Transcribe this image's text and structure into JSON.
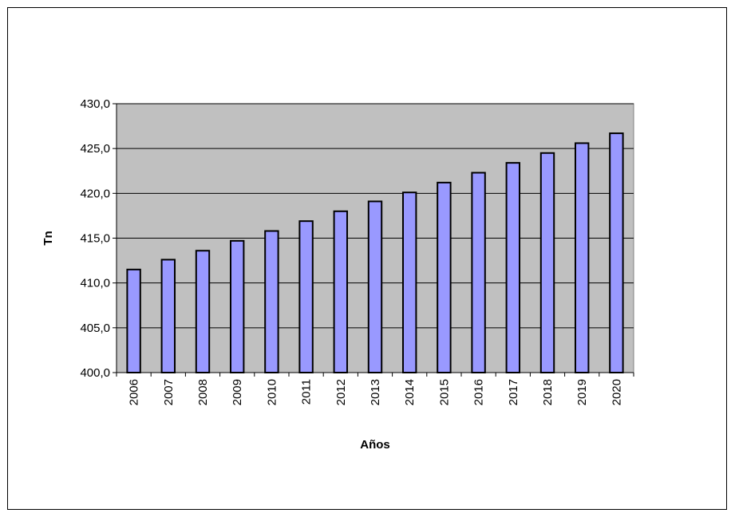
{
  "colors": {
    "plot_background": "#c0c0c0",
    "bar_fill": "#9999ff",
    "bar_stroke": "#000000",
    "gridline": "#000000"
  },
  "chart_data": {
    "type": "bar",
    "title": "",
    "xlabel": "Años",
    "ylabel": "Tn",
    "categories": [
      "2006",
      "2007",
      "2008",
      "2009",
      "2010",
      "2011",
      "2012",
      "2013",
      "2014",
      "2015",
      "2016",
      "2017",
      "2018",
      "2019",
      "2020"
    ],
    "values": [
      411.5,
      412.6,
      413.6,
      414.7,
      415.8,
      416.9,
      418.0,
      419.1,
      420.1,
      421.2,
      422.3,
      423.4,
      424.5,
      425.6,
      426.7
    ],
    "ylim": [
      400,
      430
    ],
    "yticks": [
      400,
      405,
      410,
      415,
      420,
      425,
      430
    ],
    "ytick_labels": [
      "400,0",
      "405,0",
      "410,0",
      "415,0",
      "420,0",
      "425,0",
      "430,0"
    ],
    "grid": true,
    "legend": "none"
  }
}
